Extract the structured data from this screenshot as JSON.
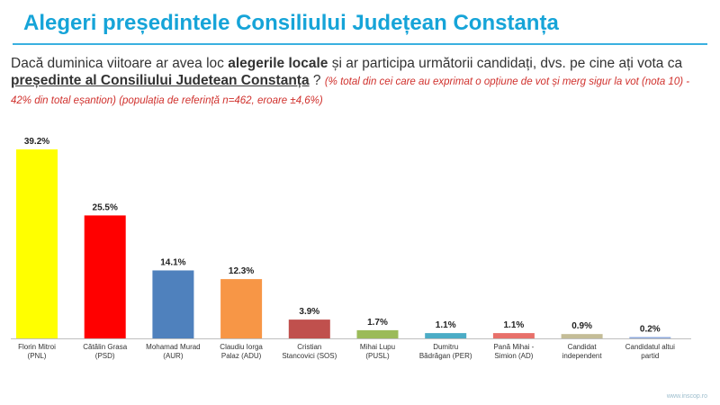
{
  "title": "Alegeri președintele Consiliului Județean Constanța",
  "question": {
    "part1": "Dacă duminica viitoare ar avea loc ",
    "part2": "alegerile locale",
    "part3": " și ar participa următorii candidați, dvs. pe cine ați vota ca ",
    "part4": "președinte al Consiliului Judetean  Constanța",
    "part5": " ? ",
    "note": "(% total din cei care au exprimat o opțiune de vot și merg sigur la vot (nota 10)  - 42% din total eșantion) (populația de referință n=462, eroare ±4,6%)"
  },
  "footer": "www.inscop.ro",
  "chart_data": {
    "type": "bar",
    "categories": [
      [
        "Florin Mitroi",
        "(PNL)"
      ],
      [
        "Cătălin Grasa",
        "(PSD)"
      ],
      [
        "Mohamad Murad",
        "(AUR)"
      ],
      [
        "Claudiu Iorga",
        "Palaz  (ADU)"
      ],
      [
        "Cristian",
        "Stancovici (SOS)"
      ],
      [
        "Mihai Lupu",
        "(PUSL)"
      ],
      [
        "Dumitru",
        "Bădrăgan (PER)"
      ],
      [
        "Pană Mihai -",
        "Simion (AD)"
      ],
      [
        "Candidat",
        "independent"
      ],
      [
        "Candidatul altui",
        "partid"
      ]
    ],
    "values": [
      39.2,
      25.5,
      14.1,
      12.3,
      3.9,
      1.7,
      1.1,
      1.1,
      0.9,
      0.2
    ],
    "labels": [
      "39.2%",
      "25.5%",
      "14.1%",
      "12.3%",
      "3.9%",
      "1.7%",
      "1.1%",
      "1.1%",
      "0.9%",
      "0.2%"
    ],
    "colors": [
      "#ffff00",
      "#ff0000",
      "#4f81bd",
      "#f79646",
      "#c0504d",
      "#9bbb59",
      "#4bacc6",
      "#e8706a",
      "#c4bd97",
      "#8faadc"
    ],
    "ylim": [
      0,
      39.2
    ],
    "grid": false,
    "legend": "none"
  }
}
